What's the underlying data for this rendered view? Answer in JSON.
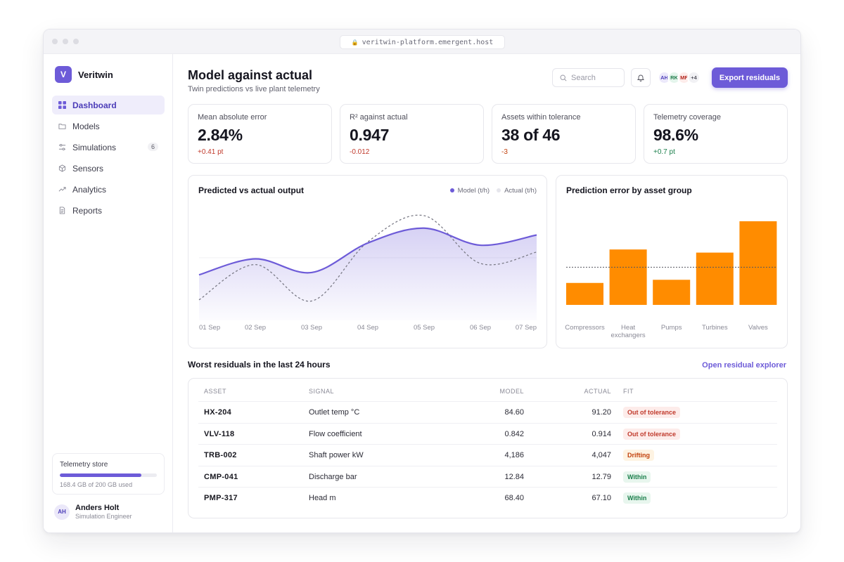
{
  "browser": {
    "url": "veritwin-platform.emergent.host"
  },
  "brand": {
    "logo_letter": "V",
    "name": "Veritwin",
    "accent": "#6d5bd8"
  },
  "sidebar": {
    "items": [
      {
        "label": "Dashboard",
        "icon": "grid-icon",
        "active": true
      },
      {
        "label": "Models",
        "icon": "folder-icon"
      },
      {
        "label": "Simulations",
        "icon": "sliders-icon",
        "badge": "6"
      },
      {
        "label": "Sensors",
        "icon": "cube-icon"
      },
      {
        "label": "Analytics",
        "icon": "trend-icon"
      },
      {
        "label": "Reports",
        "icon": "document-icon"
      }
    ],
    "storage": {
      "title": "Telemetry store",
      "used_fraction": 0.842,
      "detail": "168.4 GB of 200 GB used"
    },
    "profile": {
      "initials": "AH",
      "name": "Anders Holt",
      "role": "Simulation Engineer"
    }
  },
  "header": {
    "title": "Model against actual",
    "subtitle": "Twin predictions vs live plant telemetry",
    "search_placeholder": "Search",
    "avatars": [
      "AH",
      "RK",
      "MF"
    ],
    "avatars_more": "+4",
    "export_label": "Export residuals"
  },
  "kpis": [
    {
      "label": "Mean absolute error",
      "value": "2.84%",
      "delta": "+0.41 pt",
      "tone": "neg"
    },
    {
      "label": "R² against actual",
      "value": "0.947",
      "delta": "-0.012",
      "tone": "neg"
    },
    {
      "label": "Assets within tolerance",
      "value": "38 of 46",
      "delta": "-3",
      "tone": "warn"
    },
    {
      "label": "Telemetry coverage",
      "value": "98.6%",
      "delta": "+0.7 pt",
      "tone": "pos"
    }
  ],
  "chart_data": [
    {
      "type": "line",
      "title": "Predicted vs actual output",
      "categories": [
        "01 Sep",
        "02 Sep",
        "03 Sep",
        "04 Sep",
        "05 Sep",
        "06 Sep",
        "07 Sep"
      ],
      "series": [
        {
          "name": "Model (t/h)",
          "color": "#6d5bd8",
          "style": "solid-area",
          "values": [
            40,
            54,
            42,
            68,
            81,
            66,
            75
          ]
        },
        {
          "name": "Actual (t/h)",
          "color": "#7a7a86",
          "style": "dashed",
          "values": [
            18,
            49,
            17,
            69,
            92,
            50,
            60
          ]
        }
      ],
      "ylim": [
        0,
        100
      ]
    },
    {
      "type": "bar",
      "title": "Prediction error by asset group",
      "categories": [
        "Compressors",
        "Heat exchangers",
        "Pumps",
        "Turbines",
        "Valves"
      ],
      "values": [
        2.1,
        5.3,
        2.4,
        5.0,
        8.0
      ],
      "reference_line": 3.6,
      "color": "#ff8c00",
      "ylim": [
        0,
        8.6
      ]
    }
  ],
  "residuals": {
    "title": "Worst residuals in the last 24 hours",
    "link": "Open residual explorer",
    "columns": [
      "ASSET",
      "SIGNAL",
      "MODEL",
      "ACTUAL",
      "FIT"
    ],
    "rows": [
      {
        "asset": "HX-204",
        "signal": "Outlet temp °C",
        "model": "84.60",
        "actual": "91.20",
        "fit": "Out of tolerance",
        "tone": "bad"
      },
      {
        "asset": "VLV-118",
        "signal": "Flow coefficient",
        "model": "0.842",
        "actual": "0.914",
        "fit": "Out of tolerance",
        "tone": "bad"
      },
      {
        "asset": "TRB-002",
        "signal": "Shaft power kW",
        "model": "4,186",
        "actual": "4,047",
        "fit": "Drifting",
        "tone": "warn"
      },
      {
        "asset": "CMP-041",
        "signal": "Discharge bar",
        "model": "12.84",
        "actual": "12.79",
        "fit": "Within",
        "tone": "ok"
      },
      {
        "asset": "PMP-317",
        "signal": "Head m",
        "model": "68.40",
        "actual": "67.10",
        "fit": "Within",
        "tone": "ok"
      }
    ]
  }
}
